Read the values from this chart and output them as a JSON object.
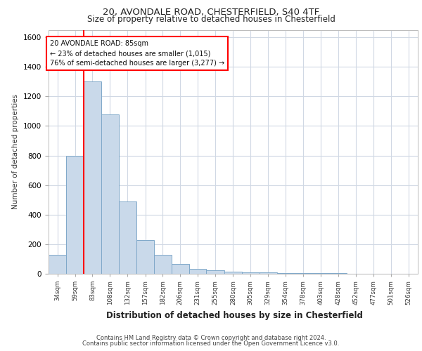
{
  "title_line1": "20, AVONDALE ROAD, CHESTERFIELD, S40 4TF",
  "title_line2": "Size of property relative to detached houses in Chesterfield",
  "xlabel": "Distribution of detached houses by size in Chesterfield",
  "ylabel": "Number of detached properties",
  "footer_line1": "Contains HM Land Registry data © Crown copyright and database right 2024.",
  "footer_line2": "Contains public sector information licensed under the Open Government Licence v3.0.",
  "annotation_line1": "20 AVONDALE ROAD: 85sqm",
  "annotation_line2": "← 23% of detached houses are smaller (1,015)",
  "annotation_line3": "76% of semi-detached houses are larger (3,277) →",
  "bar_color": "#c9d9ea",
  "bar_edge_color": "#7fa8c9",
  "categories": [
    "34sqm",
    "59sqm",
    "83sqm",
    "108sqm",
    "132sqm",
    "157sqm",
    "182sqm",
    "206sqm",
    "231sqm",
    "255sqm",
    "280sqm",
    "305sqm",
    "329sqm",
    "354sqm",
    "378sqm",
    "403sqm",
    "428sqm",
    "452sqm",
    "477sqm",
    "501sqm",
    "526sqm"
  ],
  "bin_edges": [
    34,
    59,
    83,
    108,
    132,
    157,
    182,
    206,
    231,
    255,
    280,
    305,
    329,
    354,
    378,
    403,
    428,
    452,
    477,
    501,
    526,
    551
  ],
  "values": [
    130,
    800,
    1300,
    1080,
    490,
    230,
    130,
    65,
    35,
    25,
    15,
    10,
    10,
    5,
    5,
    3,
    3,
    2,
    2,
    2,
    0
  ],
  "ylim": [
    0,
    1650
  ],
  "yticks": [
    0,
    200,
    400,
    600,
    800,
    1000,
    1200,
    1400,
    1600
  ],
  "grid_color": "#d0d8e4",
  "background_color": "#ffffff",
  "redline_bin_index": 2
}
